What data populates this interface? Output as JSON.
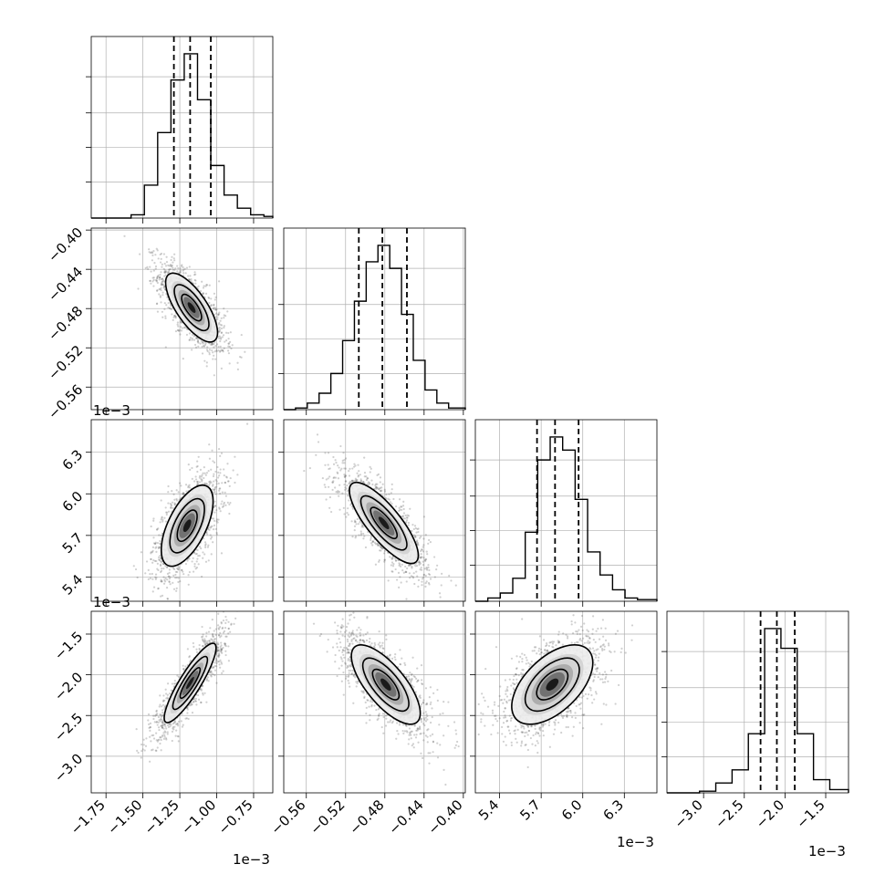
{
  "chart_data": {
    "type": "scatter",
    "kind": "corner-plot",
    "parameters": [
      {
        "index": 0,
        "range": [
          -1.85,
          -0.62
        ],
        "ticks": [
          -1.75,
          -1.5,
          -1.25,
          -1.0,
          -0.75
        ],
        "tick_labels": [
          "−1.75",
          "−1.50",
          "−1.25",
          "−1.00",
          "−0.75"
        ],
        "offset_label": "1e−3"
      },
      {
        "index": 1,
        "range": [
          -0.583,
          -0.398
        ],
        "ticks": [
          -0.56,
          -0.52,
          -0.48,
          -0.44,
          -0.4
        ],
        "tick_labels": [
          "−0.56",
          "−0.52",
          "−0.48",
          "−0.44",
          "−0.40"
        ],
        "offset_label": "1e−3"
      },
      {
        "index": 2,
        "range": [
          5.225,
          6.535
        ],
        "ticks": [
          5.4,
          5.7,
          6.0,
          6.3
        ],
        "tick_labels": [
          "5.4",
          "5.7",
          "6.0",
          "6.3"
        ],
        "offset_label": "1e−3"
      },
      {
        "index": 3,
        "range": [
          -3.45,
          -1.22
        ],
        "ticks": [
          -3.0,
          -2.5,
          -2.0,
          -1.5
        ],
        "tick_labels": [
          "−3.0",
          "−2.5",
          "−2.0",
          "−1.5"
        ],
        "offset_label": "1e−3"
      }
    ],
    "histograms": [
      {
        "param": 0,
        "quantiles": [
          -1.29,
          -1.18,
          -1.04
        ],
        "bin_edges": [
          -1.85,
          -1.76,
          -1.67,
          -1.58,
          -1.49,
          -1.4,
          -1.31,
          -1.22,
          -1.13,
          -1.04,
          -0.95,
          -0.86,
          -0.77,
          -0.68,
          -0.62
        ],
        "counts": [
          0,
          0,
          0,
          0.02,
          0.2,
          0.52,
          0.84,
          1.0,
          0.72,
          0.32,
          0.14,
          0.06,
          0.02,
          0.01
        ]
      },
      {
        "param": 1,
        "quantiles": [
          -0.5065,
          -0.4825,
          -0.4575
        ],
        "bin_edges": [
          -0.583,
          -0.571,
          -0.559,
          -0.547,
          -0.535,
          -0.523,
          -0.511,
          -0.499,
          -0.487,
          -0.475,
          -0.463,
          -0.451,
          -0.439,
          -0.427,
          -0.415,
          -0.398
        ],
        "counts": [
          0,
          0.01,
          0.04,
          0.1,
          0.22,
          0.42,
          0.66,
          0.9,
          1.0,
          0.86,
          0.58,
          0.3,
          0.12,
          0.04,
          0.01
        ]
      },
      {
        "param": 2,
        "quantiles": [
          5.67,
          5.8,
          5.97
        ],
        "bin_edges": [
          5.225,
          5.315,
          5.405,
          5.495,
          5.585,
          5.675,
          5.765,
          5.855,
          5.945,
          6.035,
          6.125,
          6.215,
          6.305,
          6.395,
          6.535
        ],
        "counts": [
          0,
          0.02,
          0.05,
          0.14,
          0.42,
          0.86,
          1.0,
          0.92,
          0.62,
          0.3,
          0.16,
          0.07,
          0.02,
          0.01
        ]
      },
      {
        "param": 3,
        "quantiles": [
          -2.3,
          -2.1,
          -1.88
        ],
        "bin_edges": [
          -3.45,
          -3.25,
          -3.05,
          -2.85,
          -2.65,
          -2.45,
          -2.25,
          -2.05,
          -1.85,
          -1.65,
          -1.45,
          -1.22
        ],
        "counts": [
          0,
          0,
          0.01,
          0.06,
          0.14,
          0.36,
          1.0,
          0.88,
          0.36,
          0.08,
          0.02
        ]
      }
    ],
    "pairs": [
      {
        "x_param": 0,
        "y_param": 1,
        "mean": [
          -1.17,
          -0.479
        ],
        "sd": [
          0.09,
          0.018
        ],
        "corr": -0.72
      },
      {
        "x_param": 0,
        "y_param": 2,
        "mean": [
          -1.2,
          5.77
        ],
        "sd": [
          0.09,
          0.15
        ],
        "corr": 0.6
      },
      {
        "x_param": 1,
        "y_param": 2,
        "mean": [
          -0.481,
          5.79
        ],
        "sd": [
          0.018,
          0.15
        ],
        "corr": -0.8
      },
      {
        "x_param": 0,
        "y_param": 3,
        "mean": [
          -1.18,
          -2.1
        ],
        "sd": [
          0.09,
          0.25
        ],
        "corr": 0.88
      },
      {
        "x_param": 1,
        "y_param": 3,
        "mean": [
          -0.479,
          -2.12
        ],
        "sd": [
          0.018,
          0.25
        ],
        "corr": -0.72
      },
      {
        "x_param": 2,
        "y_param": 3,
        "mean": [
          5.78,
          -2.12
        ],
        "sd": [
          0.15,
          0.25
        ],
        "corr": 0.55
      }
    ],
    "grid": true,
    "colors": {
      "ink": "#000000",
      "scatter": "#555555",
      "grid": "#b0b0b0"
    }
  }
}
